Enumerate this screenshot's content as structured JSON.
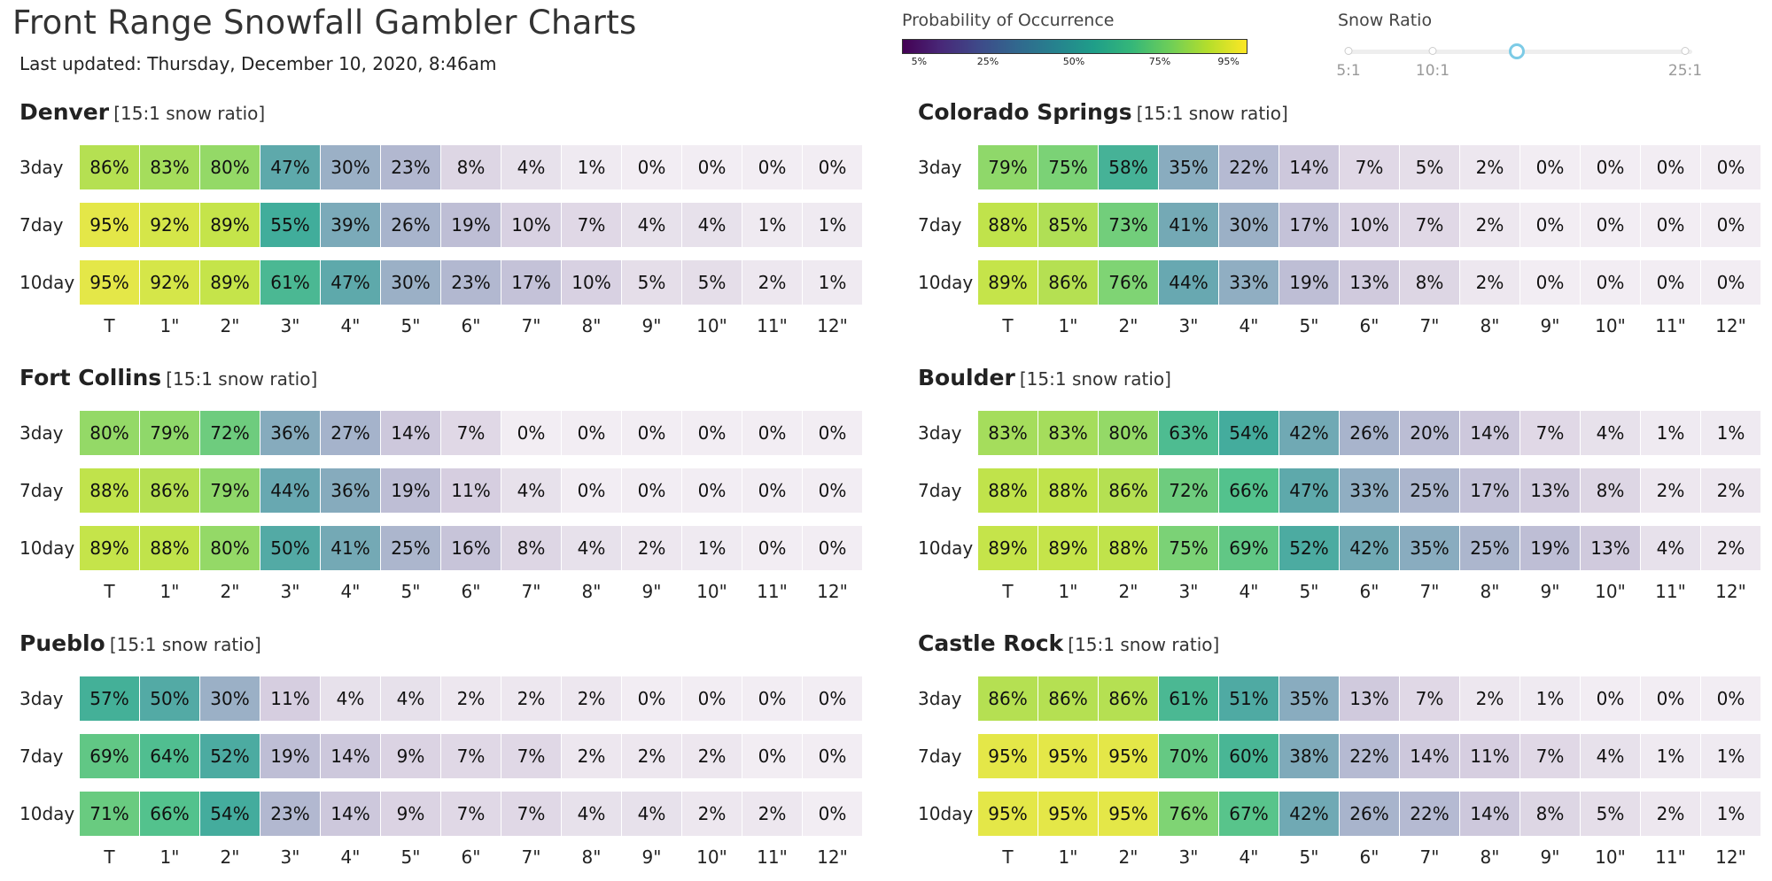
{
  "page": {
    "title": "Front Range Snowfall Gambler Charts",
    "last_updated": "Last updated: Thursday, December 10, 2020, 8:46am"
  },
  "legend": {
    "title": "Probability of Occurrence",
    "colormap": "viridis",
    "ticks": [
      "5%",
      "25%",
      "50%",
      "75%",
      "95%"
    ],
    "tick_values": [
      5,
      25,
      50,
      75,
      95
    ]
  },
  "snow_ratio": {
    "title": "Snow Ratio",
    "labels": [
      "5:1",
      "10:1",
      "25:1"
    ],
    "options": [
      5,
      10,
      15,
      25
    ],
    "selected": 15
  },
  "colors": {
    "text": "#222222",
    "muted": "#999999",
    "handle": "#7ccbe6"
  },
  "chart_data": [
    {
      "type": "heatmap",
      "title": "Denver",
      "subtitle": "[15:1 snow ratio]",
      "rows": [
        "3day",
        "7day",
        "10day"
      ],
      "columns": [
        "T",
        "1\"",
        "2\"",
        "3\"",
        "4\"",
        "5\"",
        "6\"",
        "7\"",
        "8\"",
        "9\"",
        "10\"",
        "11\"",
        "12\""
      ],
      "values": [
        [
          86,
          83,
          80,
          47,
          30,
          23,
          8,
          4,
          1,
          0,
          0,
          0,
          0
        ],
        [
          95,
          92,
          89,
          55,
          39,
          26,
          19,
          10,
          7,
          4,
          4,
          1,
          1
        ],
        [
          95,
          92,
          89,
          61,
          47,
          30,
          23,
          17,
          10,
          5,
          5,
          2,
          1
        ]
      ],
      "labels": [
        [
          "86%",
          "83%",
          "80%",
          "47%",
          "30%",
          "23%",
          "8%",
          "4%",
          "1%",
          "0%",
          "0%",
          "0%",
          "0%"
        ],
        [
          "95%",
          "92%",
          "89%",
          "55%",
          "39%",
          "26%",
          "19%",
          "10%",
          "7%",
          "4%",
          "4%",
          "1%",
          "1%"
        ],
        [
          "95%",
          "92%",
          "89%",
          "61%",
          "47%",
          "30%",
          "23%",
          "17%",
          "10%",
          "5%",
          "5%",
          "2%",
          "1%"
        ]
      ]
    },
    {
      "type": "heatmap",
      "title": "Colorado Springs",
      "subtitle": "[15:1 snow ratio]",
      "rows": [
        "3day",
        "7day",
        "10day"
      ],
      "columns": [
        "T",
        "1\"",
        "2\"",
        "3\"",
        "4\"",
        "5\"",
        "6\"",
        "7\"",
        "8\"",
        "9\"",
        "10\"",
        "11\"",
        "12\""
      ],
      "values": [
        [
          79,
          75,
          58,
          35,
          22,
          14,
          7,
          5,
          2,
          0,
          0,
          0,
          0
        ],
        [
          88,
          85,
          73,
          41,
          30,
          17,
          10,
          7,
          2,
          0,
          0,
          0,
          0
        ],
        [
          89,
          86,
          76,
          44,
          33,
          19,
          13,
          8,
          2,
          0,
          0,
          0,
          0
        ]
      ],
      "labels": [
        [
          "79%",
          "75%",
          "58%",
          "35%",
          "22%",
          "14%",
          "7%",
          "5%",
          "2%",
          "0%",
          "0%",
          "0%",
          "0%"
        ],
        [
          "88%",
          "85%",
          "73%",
          "41%",
          "30%",
          "17%",
          "10%",
          "7%",
          "2%",
          "0%",
          "0%",
          "0%",
          "0%"
        ],
        [
          "89%",
          "86%",
          "76%",
          "44%",
          "33%",
          "19%",
          "13%",
          "8%",
          "2%",
          "0%",
          "0%",
          "0%",
          "0%"
        ]
      ]
    },
    {
      "type": "heatmap",
      "title": "Fort Collins",
      "subtitle": "[15:1 snow ratio]",
      "rows": [
        "3day",
        "7day",
        "10day"
      ],
      "columns": [
        "T",
        "1\"",
        "2\"",
        "3\"",
        "4\"",
        "5\"",
        "6\"",
        "7\"",
        "8\"",
        "9\"",
        "10\"",
        "11\"",
        "12\""
      ],
      "values": [
        [
          80,
          79,
          72,
          36,
          27,
          14,
          7,
          0,
          0,
          0,
          0,
          0,
          0
        ],
        [
          88,
          86,
          79,
          44,
          36,
          19,
          11,
          4,
          0,
          0,
          0,
          0,
          0
        ],
        [
          89,
          88,
          80,
          50,
          41,
          25,
          16,
          8,
          4,
          2,
          1,
          0,
          0
        ]
      ],
      "labels": [
        [
          "80%",
          "79%",
          "72%",
          "36%",
          "27%",
          "14%",
          "7%",
          "0%",
          "0%",
          "0%",
          "0%",
          "0%",
          "0%"
        ],
        [
          "88%",
          "86%",
          "79%",
          "44%",
          "36%",
          "19%",
          "11%",
          "4%",
          "0%",
          "0%",
          "0%",
          "0%",
          "0%"
        ],
        [
          "89%",
          "88%",
          "80%",
          "50%",
          "41%",
          "25%",
          "16%",
          "8%",
          "4%",
          "2%",
          "1%",
          "0%",
          "0%"
        ]
      ]
    },
    {
      "type": "heatmap",
      "title": "Boulder",
      "subtitle": "[15:1 snow ratio]",
      "rows": [
        "3day",
        "7day",
        "10day"
      ],
      "columns": [
        "T",
        "1\"",
        "2\"",
        "3\"",
        "4\"",
        "5\"",
        "6\"",
        "7\"",
        "8\"",
        "9\"",
        "10\"",
        "11\"",
        "12\""
      ],
      "values": [
        [
          83,
          83,
          80,
          63,
          54,
          42,
          26,
          20,
          14,
          7,
          4,
          1,
          1
        ],
        [
          88,
          88,
          86,
          72,
          66,
          47,
          33,
          25,
          17,
          13,
          8,
          2,
          2
        ],
        [
          89,
          89,
          88,
          75,
          69,
          52,
          42,
          35,
          25,
          19,
          13,
          4,
          2
        ]
      ],
      "labels": [
        [
          "83%",
          "83%",
          "80%",
          "63%",
          "54%",
          "42%",
          "26%",
          "20%",
          "14%",
          "7%",
          "4%",
          "1%",
          "1%"
        ],
        [
          "88%",
          "88%",
          "86%",
          "72%",
          "66%",
          "47%",
          "33%",
          "25%",
          "17%",
          "13%",
          "8%",
          "2%",
          "2%"
        ],
        [
          "89%",
          "89%",
          "88%",
          "75%",
          "69%",
          "52%",
          "42%",
          "35%",
          "25%",
          "19%",
          "13%",
          "4%",
          "2%"
        ]
      ]
    },
    {
      "type": "heatmap",
      "title": "Pueblo",
      "subtitle": "[15:1 snow ratio]",
      "rows": [
        "3day",
        "7day",
        "10day"
      ],
      "columns": [
        "T",
        "1\"",
        "2\"",
        "3\"",
        "4\"",
        "5\"",
        "6\"",
        "7\"",
        "8\"",
        "9\"",
        "10\"",
        "11\"",
        "12\""
      ],
      "values": [
        [
          57,
          50,
          30,
          11,
          4,
          4,
          2,
          2,
          2,
          0,
          0,
          0,
          0
        ],
        [
          69,
          64,
          52,
          19,
          14,
          9,
          7,
          7,
          2,
          2,
          2,
          0,
          0
        ],
        [
          71,
          66,
          54,
          23,
          14,
          9,
          7,
          7,
          4,
          4,
          2,
          2,
          0
        ]
      ],
      "labels": [
        [
          "57%",
          "50%",
          "30%",
          "11%",
          "4%",
          "4%",
          "2%",
          "2%",
          "2%",
          "0%",
          "0%",
          "0%",
          "0%"
        ],
        [
          "69%",
          "64%",
          "52%",
          "19%",
          "14%",
          "9%",
          "7%",
          "7%",
          "2%",
          "2%",
          "2%",
          "0%",
          "0%"
        ],
        [
          "71%",
          "66%",
          "54%",
          "23%",
          "14%",
          "9%",
          "7%",
          "7%",
          "4%",
          "4%",
          "2%",
          "2%",
          "0%"
        ]
      ]
    },
    {
      "type": "heatmap",
      "title": "Castle Rock",
      "subtitle": "[15:1 snow ratio]",
      "rows": [
        "3day",
        "7day",
        "10day"
      ],
      "columns": [
        "T",
        "1\"",
        "2\"",
        "3\"",
        "4\"",
        "5\"",
        "6\"",
        "7\"",
        "8\"",
        "9\"",
        "10\"",
        "11\"",
        "12\""
      ],
      "values": [
        [
          86,
          86,
          86,
          61,
          51,
          35,
          13,
          7,
          2,
          1,
          0,
          0,
          0
        ],
        [
          95,
          95,
          95,
          70,
          60,
          38,
          22,
          14,
          11,
          7,
          4,
          1,
          1
        ],
        [
          95,
          95,
          95,
          76,
          67,
          42,
          26,
          22,
          14,
          8,
          5,
          2,
          1
        ]
      ],
      "labels": [
        [
          "86%",
          "86%",
          "86%",
          "61%",
          "51%",
          "35%",
          "13%",
          "7%",
          "2%",
          "1%",
          "0%",
          "0%",
          "0%"
        ],
        [
          "95%",
          "95%",
          "95%",
          "70%",
          "60%",
          "38%",
          "22%",
          "14%",
          "11%",
          "7%",
          "4%",
          "1%",
          "1%"
        ],
        [
          "95%",
          "95%",
          "95%",
          "76%",
          "67%",
          "42%",
          "26%",
          "22%",
          "14%",
          "8%",
          "5%",
          "2%",
          "1%"
        ]
      ]
    }
  ]
}
